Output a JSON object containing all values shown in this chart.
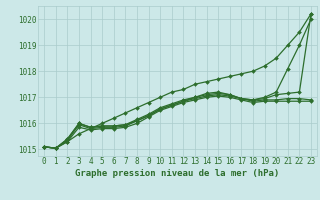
{
  "x": [
    0,
    1,
    2,
    3,
    4,
    5,
    6,
    7,
    8,
    9,
    10,
    11,
    12,
    13,
    14,
    15,
    16,
    17,
    18,
    19,
    20,
    21,
    22,
    23
  ],
  "lines": [
    {
      "y": [
        1015.1,
        1015.05,
        1015.3,
        1015.6,
        1015.8,
        1016.0,
        1016.2,
        1016.4,
        1016.6,
        1016.8,
        1017.0,
        1017.2,
        1017.3,
        1017.5,
        1017.6,
        1017.7,
        1017.8,
        1017.9,
        1018.0,
        1018.2,
        1018.5,
        1019.0,
        1019.5,
        1020.2
      ],
      "marker": "D",
      "markersize": 2.0,
      "linewidth": 0.9
    },
    {
      "y": [
        1015.1,
        1015.05,
        1015.4,
        1016.0,
        1015.85,
        1015.9,
        1015.9,
        1015.95,
        1016.1,
        1016.3,
        1016.55,
        1016.7,
        1016.85,
        1017.0,
        1017.15,
        1017.2,
        1017.1,
        1016.95,
        1016.9,
        1017.0,
        1017.2,
        1018.1,
        1019.0,
        1020.0
      ],
      "marker": "D",
      "markersize": 2.0,
      "linewidth": 0.9
    },
    {
      "y": [
        1015.1,
        1015.05,
        1015.4,
        1016.0,
        1015.85,
        1015.9,
        1015.9,
        1015.95,
        1016.15,
        1016.35,
        1016.6,
        1016.75,
        1016.9,
        1017.0,
        1017.1,
        1017.15,
        1017.1,
        1016.95,
        1016.9,
        1016.95,
        1017.1,
        1017.15,
        1017.2,
        1020.2
      ],
      "marker": "D",
      "markersize": 2.0,
      "linewidth": 0.9
    },
    {
      "y": [
        1015.1,
        1015.05,
        1015.35,
        1015.95,
        1015.8,
        1015.85,
        1015.85,
        1015.9,
        1016.1,
        1016.3,
        1016.55,
        1016.7,
        1016.85,
        1016.95,
        1017.05,
        1017.1,
        1017.05,
        1016.95,
        1016.85,
        1016.9,
        1016.9,
        1016.95,
        1016.95,
        1016.9
      ],
      "marker": "D",
      "markersize": 2.0,
      "linewidth": 0.9
    },
    {
      "y": [
        1015.1,
        1015.05,
        1015.3,
        1015.85,
        1015.75,
        1015.8,
        1015.8,
        1015.85,
        1016.0,
        1016.25,
        1016.5,
        1016.65,
        1016.8,
        1016.9,
        1017.0,
        1017.05,
        1017.0,
        1016.9,
        1016.8,
        1016.85,
        1016.85,
        1016.85,
        1016.85,
        1016.85
      ],
      "marker": "D",
      "markersize": 2.0,
      "linewidth": 0.9
    }
  ],
  "line_color": "#2d6e2d",
  "bg_color": "#cce8e8",
  "grid_color": "#aacccc",
  "ylim": [
    1014.75,
    1020.5
  ],
  "yticks": [
    1015,
    1016,
    1017,
    1018,
    1019,
    1020
  ],
  "xticks": [
    0,
    1,
    2,
    3,
    4,
    5,
    6,
    7,
    8,
    9,
    10,
    11,
    12,
    13,
    14,
    15,
    16,
    17,
    18,
    19,
    20,
    21,
    22,
    23
  ],
  "tick_fontsize": 5.5,
  "xlabel": "Graphe pression niveau de la mer (hPa)",
  "xlabel_fontsize": 6.5
}
